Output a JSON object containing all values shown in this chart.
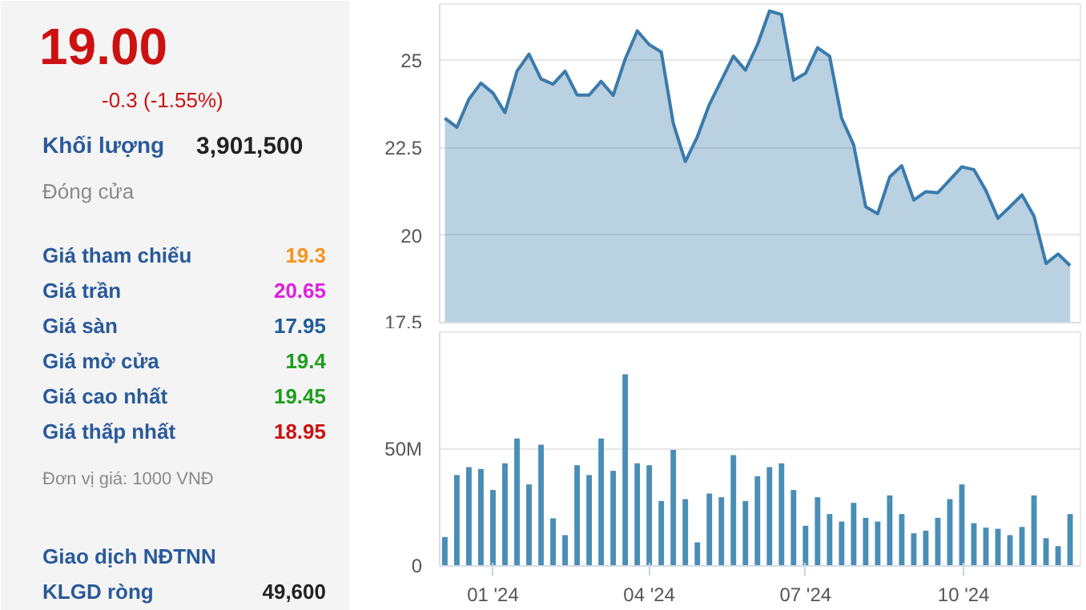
{
  "chart_data": [
    {
      "type": "other",
      "title": "19.00",
      "subtitle": "-0.3 (-1.55%)",
      "annotations": [
        "Khối lượng",
        "3,901,500",
        "Đóng cửa",
        "Giá tham chiếu",
        "19.3",
        "Giá trần",
        "20.65",
        "Giá sàn",
        "17.95",
        "Giá mở cửa",
        "19.4",
        "Giá cao nhất",
        "19.45",
        "Giá thấp nhất",
        "18.95",
        "Đơn vị giá: 1000 VNĐ",
        "Giao dịch NĐTNN",
        "KLGD ròng",
        "49,600"
      ],
      "colors": [
        "#2a5a9a",
        "#222222",
        "#8a8a8a",
        "#2a5a9a",
        "#f7941d",
        "#2a5a9a",
        "#e01fe0",
        "#2a5a9a",
        "#1f5c99",
        "#2a5a9a",
        "#1e9e1e",
        "#2a5a9a",
        "#1e9e1e",
        "#2a5a9a",
        "#cc1111",
        "#8a8a8a",
        "#2a5a9a",
        "#2a5a9a",
        "#222222"
      ],
      "color": "#cc1111"
    },
    {
      "type": "area",
      "x": [
        "2023-12-04",
        "2023-12-11",
        "2023-12-18",
        "2023-12-25",
        "2024-01-01",
        "2024-01-08",
        "2024-01-15",
        "2024-01-22",
        "2024-01-29",
        "2024-02-05",
        "2024-02-12",
        "2024-02-19",
        "2024-02-26",
        "2024-03-04",
        "2024-03-11",
        "2024-03-18",
        "2024-03-25",
        "2024-04-01",
        "2024-04-08",
        "2024-04-15",
        "2024-04-22",
        "2024-04-29",
        "2024-05-06",
        "2024-05-13",
        "2024-05-20",
        "2024-05-27",
        "2024-06-03",
        "2024-06-10",
        "2024-06-17",
        "2024-06-24",
        "2024-07-01",
        "2024-07-08",
        "2024-07-15",
        "2024-07-22",
        "2024-07-29",
        "2024-08-05",
        "2024-08-12",
        "2024-08-19",
        "2024-08-26",
        "2024-09-02",
        "2024-09-09",
        "2024-09-16",
        "2024-09-23",
        "2024-09-30",
        "2024-10-07",
        "2024-10-14",
        "2024-10-21",
        "2024-10-28",
        "2024-11-04",
        "2024-11-11",
        "2024-11-18",
        "2024-11-25",
        "2024-12-02"
      ],
      "series": [
        {
          "color": "#3a7bab",
          "values": [
            23.34,
            23.08,
            23.88,
            24.34,
            24.06,
            23.5,
            24.68,
            25.17,
            24.46,
            24.31,
            24.68,
            24.0,
            24.0,
            24.39,
            23.99,
            25.03,
            25.83,
            25.44,
            25.23,
            23.19,
            22.1,
            22.81,
            23.73,
            24.42,
            25.11,
            24.71,
            25.44,
            26.4,
            26.3,
            24.42,
            24.62,
            25.35,
            25.11,
            23.34,
            22.58,
            20.81,
            20.61,
            21.66,
            21.98,
            21.0,
            21.24,
            21.21,
            21.58,
            21.95,
            21.87,
            21.27,
            20.48,
            20.81,
            21.15,
            20.54,
            19.19,
            19.46,
            19.13
          ]
        }
      ],
      "xlim": [
        "2023-12-01",
        "2024-12-08"
      ],
      "ylim": [
        17.5,
        26.6
      ],
      "yticks": [
        17.5,
        20,
        22.5,
        25
      ],
      "grid": "y",
      "tick_labels": "y"
    },
    {
      "type": "bar",
      "x": [
        "2023-12-04",
        "2023-12-11",
        "2023-12-18",
        "2023-12-25",
        "2024-01-01",
        "2024-01-08",
        "2024-01-15",
        "2024-01-22",
        "2024-01-29",
        "2024-02-05",
        "2024-02-12",
        "2024-02-19",
        "2024-02-26",
        "2024-03-04",
        "2024-03-11",
        "2024-03-18",
        "2024-03-25",
        "2024-04-01",
        "2024-04-08",
        "2024-04-15",
        "2024-04-22",
        "2024-04-29",
        "2024-05-06",
        "2024-05-13",
        "2024-05-20",
        "2024-05-27",
        "2024-06-03",
        "2024-06-10",
        "2024-06-17",
        "2024-06-24",
        "2024-07-01",
        "2024-07-08",
        "2024-07-15",
        "2024-07-22",
        "2024-07-29",
        "2024-08-05",
        "2024-08-12",
        "2024-08-19",
        "2024-08-26",
        "2024-09-02",
        "2024-09-09",
        "2024-09-16",
        "2024-09-23",
        "2024-09-30",
        "2024-10-07",
        "2024-10-14",
        "2024-10-21",
        "2024-10-28",
        "2024-11-04",
        "2024-11-11",
        "2024-11-18",
        "2024-11-25",
        "2024-12-02"
      ],
      "series": [
        {
          "color": "#4a8db5",
          "values": [
            12.4,
            38.9,
            42.3,
            41.5,
            32.5,
            43.9,
            54.5,
            34.9,
            51.9,
            20.4,
            13.2,
            43.1,
            38.9,
            54.5,
            40.7,
            82.0,
            43.9,
            43.1,
            27.8,
            49.7,
            28.6,
            10.1,
            31.0,
            29.4,
            47.4,
            27.8,
            38.4,
            42.3,
            43.9,
            32.5,
            17.2,
            29.4,
            22.2,
            19.0,
            27.0,
            20.6,
            19.0,
            30.2,
            22.2,
            14.0,
            15.1,
            20.6,
            28.6,
            34.9,
            18.3,
            16.4,
            15.9,
            13.2,
            16.7,
            30.2,
            11.9,
            8.5,
            22.2
          ]
        }
      ],
      "xlim": [
        "2023-12-01",
        "2024-12-08"
      ],
      "ylim": [
        0,
        100
      ],
      "yticks": [
        0,
        {
          "value": 50,
          "label": "50M"
        }
      ],
      "xticks": [
        {
          "value": "2024-01-01",
          "label": "01 '24"
        },
        {
          "value": "2024-04-01",
          "label": "04 '24"
        },
        {
          "value": "2024-07-01",
          "label": "07 '24"
        },
        {
          "value": "2024-10-01",
          "label": "10 '24"
        }
      ],
      "grid": "y"
    }
  ]
}
